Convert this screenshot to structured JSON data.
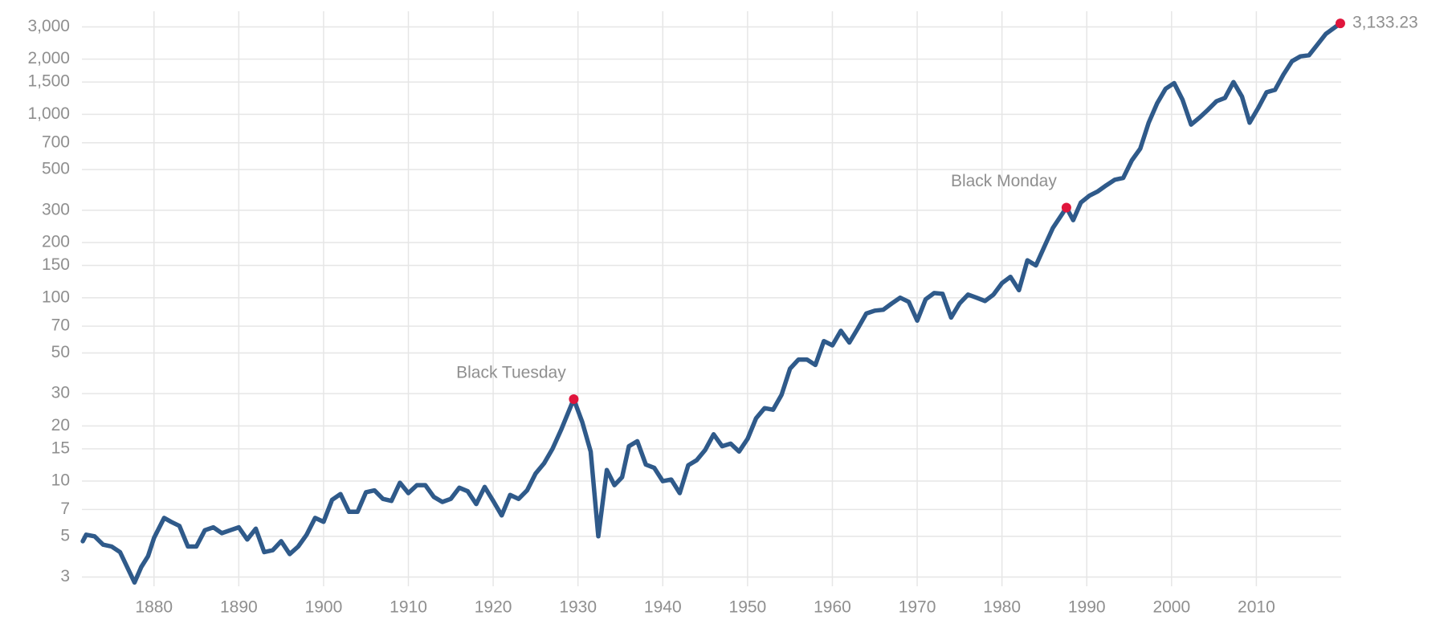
{
  "chart_data": {
    "type": "line",
    "log_scale": true,
    "grid": true,
    "xlim": [
      1871.5,
      2020
    ],
    "xticks": [
      1880,
      1890,
      1900,
      1910,
      1920,
      1930,
      1940,
      1950,
      1960,
      1970,
      1980,
      1990,
      2000,
      2010
    ],
    "ylim": [
      2.67,
      3650
    ],
    "yticks": [
      3,
      5,
      7,
      10,
      15,
      20,
      30,
      50,
      70,
      100,
      150,
      200,
      300,
      500,
      700,
      {
        "value": 1000,
        "label": "1,000"
      },
      {
        "value": 1500,
        "label": "1,500"
      },
      {
        "value": 2000,
        "label": "2,000"
      },
      {
        "value": 3000,
        "label": "3,000"
      }
    ],
    "x": [
      1871.6,
      1872,
      1873,
      1874,
      1875,
      1876,
      1877.7,
      1878.5,
      1879.3,
      1880,
      1881.2,
      1882,
      1883,
      1884,
      1885,
      1886,
      1887,
      1888,
      1889,
      1890,
      1891,
      1892,
      1893,
      1894,
      1895,
      1896,
      1897,
      1898,
      1899,
      1900,
      1901,
      1902,
      1903,
      1904,
      1905,
      1906,
      1907,
      1908,
      1909,
      1910,
      1911,
      1912,
      1913,
      1914,
      1915,
      1916,
      1917,
      1918,
      1919,
      1920,
      1921,
      1922,
      1923,
      1924,
      1925,
      1926,
      1927,
      1928,
      1929.5,
      1930.5,
      1931.5,
      1932.4,
      1933.4,
      1934.3,
      1935.2,
      1936,
      1937,
      1938,
      1939,
      1940,
      1941,
      1942,
      1943,
      1944,
      1945,
      1946,
      1947,
      1948,
      1949,
      1950,
      1951,
      1952,
      1953,
      1954,
      1955,
      1956,
      1957,
      1958,
      1959,
      1960,
      1961,
      1962,
      1963,
      1964,
      1965,
      1966,
      1967,
      1968,
      1969,
      1970,
      1971,
      1972,
      1973,
      1974,
      1975,
      1976,
      1977,
      1978,
      1979,
      1980,
      1981,
      1982,
      1983,
      1984,
      1985,
      1986,
      1987.6,
      1988.4,
      1989.3,
      1990.3,
      1991.3,
      1992.3,
      1993.3,
      1994.3,
      1995.3,
      1996.3,
      1997.3,
      1998.3,
      1999.3,
      2000.3,
      2001.3,
      2002.3,
      2003.3,
      2004.3,
      2005.3,
      2006.3,
      2007.3,
      2008.3,
      2009.2,
      2010.2,
      2011.2,
      2012.2,
      2013.2,
      2014.2,
      2015.2,
      2016.2,
      2017.2,
      2018.2,
      2019.9
    ],
    "series": [
      {
        "color": "#2f5a8a",
        "values": [
          4.7,
          5.1,
          5.0,
          4.5,
          4.4,
          4.1,
          2.8,
          3.4,
          3.9,
          4.9,
          6.3,
          6.0,
          5.7,
          4.4,
          4.4,
          5.4,
          5.6,
          5.2,
          5.4,
          5.6,
          4.8,
          5.5,
          4.1,
          4.2,
          4.7,
          4.0,
          4.4,
          5.1,
          6.3,
          6.0,
          7.9,
          8.5,
          6.8,
          6.8,
          8.7,
          8.9,
          8.0,
          7.8,
          9.8,
          8.6,
          9.5,
          9.5,
          8.2,
          7.7,
          8.0,
          9.2,
          8.8,
          7.5,
          9.3,
          7.8,
          6.5,
          8.4,
          8.0,
          8.9,
          11.0,
          12.5,
          15.0,
          19.0,
          28,
          21,
          14.5,
          5.0,
          11.5,
          9.5,
          10.5,
          15.5,
          16.5,
          12.3,
          11.8,
          10.0,
          10.2,
          8.6,
          12.2,
          13.0,
          14.8,
          18.0,
          15.5,
          16.0,
          14.5,
          17.0,
          22.0,
          25.0,
          24.5,
          29.5,
          41,
          46,
          46,
          43,
          58,
          55,
          66,
          57,
          68,
          82,
          85,
          86,
          93,
          100,
          95,
          75,
          98,
          106,
          105,
          78,
          93,
          104,
          100,
          96,
          104,
          120,
          130,
          110,
          160,
          150,
          190,
          240,
          310,
          265,
          330,
          360,
          380,
          410,
          440,
          450,
          560,
          650,
          900,
          1150,
          1380,
          1480,
          1200,
          880,
          960,
          1060,
          1180,
          1230,
          1500,
          1250,
          900,
          1080,
          1320,
          1360,
          1650,
          1950,
          2070,
          2100,
          2400,
          2750,
          3133.23
        ]
      }
    ],
    "highlight_color": "#e0153c",
    "annotations": [
      {
        "text": "Black Tuesday",
        "x": 1929.5
      },
      {
        "text": "Black Monday",
        "x": 1987.6
      },
      {
        "text": "3,133.23",
        "x": 2019.9
      }
    ]
  }
}
